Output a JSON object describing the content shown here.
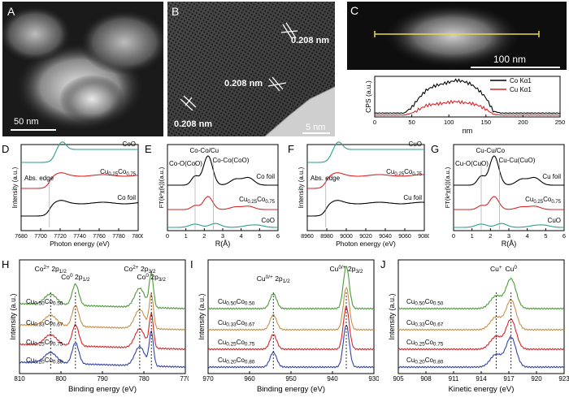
{
  "panels": {
    "A": {
      "label": "A",
      "scale": "50 nm"
    },
    "B": {
      "label": "B",
      "scale": "5 nm",
      "d1": "0.208 nm",
      "d2": "0.208 nm",
      "d3": "0.208 nm"
    },
    "C": {
      "label": "C",
      "scale": "100 nm"
    },
    "D": {
      "label": "D"
    },
    "E": {
      "label": "E"
    },
    "F": {
      "label": "F"
    },
    "G": {
      "label": "G"
    },
    "H": {
      "label": "H"
    },
    "I": {
      "label": "I"
    },
    "J": {
      "label": "J"
    }
  },
  "colors": {
    "black": "#000000",
    "red": "#d62728",
    "teal": "#2a9d8f",
    "green": "#4f9a3a",
    "orange": "#c8904a",
    "blue": "#3344a8"
  },
  "chart_data": [
    {
      "id": "C-linescan",
      "type": "line",
      "xlabel": "nm",
      "ylabel": "CPS (a.u.)",
      "xlim": [
        0,
        250
      ],
      "xticks": [
        "0",
        "50",
        "100",
        "150",
        "200",
        "250"
      ],
      "series": [
        {
          "name": "Co Kα1",
          "color": "#000000",
          "x": [
            0,
            40,
            50,
            60,
            70,
            80,
            90,
            100,
            110,
            120,
            130,
            140,
            150,
            160,
            170,
            250
          ],
          "y": [
            0.1,
            0.1,
            0.25,
            0.5,
            0.7,
            0.8,
            0.85,
            0.9,
            0.95,
            0.92,
            0.85,
            0.7,
            0.5,
            0.15,
            0.1,
            0.1
          ]
        },
        {
          "name": "Cu Kα1",
          "color": "#d62728",
          "x": [
            0,
            40,
            50,
            60,
            70,
            80,
            90,
            100,
            110,
            120,
            130,
            140,
            150,
            160,
            170,
            250
          ],
          "y": [
            0.05,
            0.05,
            0.1,
            0.2,
            0.3,
            0.33,
            0.35,
            0.38,
            0.4,
            0.37,
            0.35,
            0.3,
            0.2,
            0.07,
            0.05,
            0.05
          ]
        }
      ]
    },
    {
      "id": "D",
      "type": "line",
      "xlabel": "Photon energy (eV)",
      "ylabel": "Intensity (a.u.)",
      "xlim": [
        7680,
        7800
      ],
      "xticks": [
        "7680",
        "7700",
        "7720",
        "7740",
        "7760",
        "7780",
        "7800"
      ],
      "annotation": "Abs. edge",
      "edge": 7709,
      "series": [
        {
          "name": "CoO",
          "color": "#2a9d8f"
        },
        {
          "name": "Cu0.25Co0.75",
          "label_main": "Cu",
          "sub1": "0.25",
          "mid": "Co",
          "sub2": "0.75",
          "color": "#d62728"
        },
        {
          "name": "Co foil",
          "color": "#000000"
        }
      ]
    },
    {
      "id": "E",
      "type": "line",
      "xlabel": "R(Å)",
      "ylabel": "FT(k²χ(k))(a.u.)",
      "xlim": [
        0,
        6
      ],
      "xticks": [
        "0",
        "1",
        "2",
        "3",
        "4",
        "5",
        "6"
      ],
      "peak_labels": [
        "Co-Co/Cu",
        "Co-O(CoO)",
        "Co-Co(CoO)"
      ],
      "series": [
        {
          "name": "Co foil",
          "color": "#000000"
        },
        {
          "name": "Cu0.25Co0.75",
          "label_main": "Cu",
          "sub1": "0.25",
          "mid": "Co",
          "sub2": "0.75",
          "color": "#d62728"
        },
        {
          "name": "CoO",
          "color": "#2a9d8f"
        }
      ]
    },
    {
      "id": "F",
      "type": "line",
      "xlabel": "Photon energy (eV)",
      "ylabel": "Intensity (a.u.)",
      "xlim": [
        8960,
        9080
      ],
      "xticks": [
        "8960",
        "8980",
        "9000",
        "9020",
        "9040",
        "9060",
        "9080"
      ],
      "annotation": "Abs. edge",
      "edge": 8979,
      "series": [
        {
          "name": "CuO",
          "color": "#2a9d8f"
        },
        {
          "name": "Cu0.25Co0.75",
          "label_main": "Cu",
          "sub1": "0.25",
          "mid": "Co",
          "sub2": "0.75",
          "color": "#d62728"
        },
        {
          "name": "Cu foil",
          "color": "#000000"
        }
      ]
    },
    {
      "id": "G",
      "type": "line",
      "xlabel": "R(Å)",
      "ylabel": "FT(k²χ(k))(a.u.)",
      "xlim": [
        0,
        6
      ],
      "xticks": [
        "0",
        "1",
        "2",
        "3",
        "4",
        "5",
        "6"
      ],
      "peak_labels": [
        "Cu-Cu/Co",
        "Cu-O(CuO)",
        "Cu-Cu(CuO)"
      ],
      "series": [
        {
          "name": "Cu foil",
          "color": "#000000"
        },
        {
          "name": "Cu0.25Co0.75",
          "label_main": "Cu",
          "sub1": "0.25",
          "mid": "Co",
          "sub2": "0.75",
          "color": "#d62728"
        },
        {
          "name": "CuO",
          "color": "#2a9d8f"
        }
      ]
    },
    {
      "id": "H",
      "type": "line",
      "xlabel": "Binding energy (eV)",
      "ylabel": "Intensity (a.u.)",
      "xlim": [
        810,
        770
      ],
      "xticks": [
        "810",
        "800",
        "790",
        "780",
        "770"
      ],
      "peak_labels": [
        "Co²⁺ 2p₁/₂",
        "Co⁰ 2p₁/₂",
        "Co²⁺ 2p₃/₂",
        "Co⁰ 2p₃/₂"
      ],
      "peak_main": [
        "Co",
        "Co",
        "Co",
        "Co"
      ],
      "peak_sup": [
        "2+",
        "0",
        "2+",
        "0"
      ],
      "peak_rest": [
        " 2p",
        " 2p",
        " 2p",
        " 2p"
      ],
      "peak_sub": [
        "1/2",
        "1/2",
        "3/2",
        "3/2"
      ],
      "series": [
        {
          "name": "Cu0.50Co0.50",
          "label": "Cu0.50Co0.50",
          "color": "#4f9a3a"
        },
        {
          "name": "Cu0.33Co0.67",
          "label": "Cu0.33Co0.67",
          "color": "#c8904a"
        },
        {
          "name": "Cu0.25Co0.75",
          "label": "Cu0.25Co0.75",
          "color": "#d62728"
        },
        {
          "name": "Cu0.20Co0.80",
          "label": "Cu0.20Co0.80",
          "color": "#3344a8"
        }
      ]
    },
    {
      "id": "I",
      "type": "line",
      "xlabel": "Binding energy (eV)",
      "ylabel": "Intensity (a.u.)",
      "xlim": [
        970,
        925
      ],
      "xticks": [
        "970",
        "960",
        "950",
        "940",
        "930"
      ],
      "peak_main": [
        "Cu",
        "Cu"
      ],
      "peak_sup": [
        "0/+",
        "0/+"
      ],
      "peak_rest": [
        " 2p",
        " 2p"
      ],
      "peak_sub": [
        "1/2",
        "3/2"
      ],
      "series": [
        {
          "name": "Cu0.50Co0.50",
          "label": "Cu0.50Co0.50",
          "color": "#4f9a3a"
        },
        {
          "name": "Cu0.33Co0.67",
          "label": "Cu0.33Co0.67",
          "color": "#c8904a"
        },
        {
          "name": "Cu0.25Co0.75",
          "label": "Cu0.25Co0.75",
          "color": "#d62728"
        },
        {
          "name": "Cu0.20Co0.80",
          "label": "Cu0.20Co0.80",
          "color": "#3344a8"
        }
      ]
    },
    {
      "id": "J",
      "type": "line",
      "xlabel": "Kinetic energy (eV)",
      "ylabel": "Intensity (a.u.)",
      "xlim": [
        905,
        925
      ],
      "xticks": [
        "905",
        "908",
        "911",
        "914",
        "917",
        "920",
        "923"
      ],
      "peak_main": [
        "Cu",
        "Cu"
      ],
      "peak_sup": [
        "+",
        "0"
      ],
      "series": [
        {
          "name": "Cu0.50Co0.50",
          "label": "Cu0.50Co0.50",
          "color": "#4f9a3a"
        },
        {
          "name": "Cu0.33Co0.67",
          "label": "Cu0.33Co0.67",
          "color": "#c8904a"
        },
        {
          "name": "Cu0.25Co0.75",
          "label": "Cu0.25Co0.75",
          "color": "#d62728"
        },
        {
          "name": "Cu0.20Co0.80",
          "label": "Cu0.20Co0.80",
          "color": "#3344a8"
        }
      ]
    }
  ]
}
